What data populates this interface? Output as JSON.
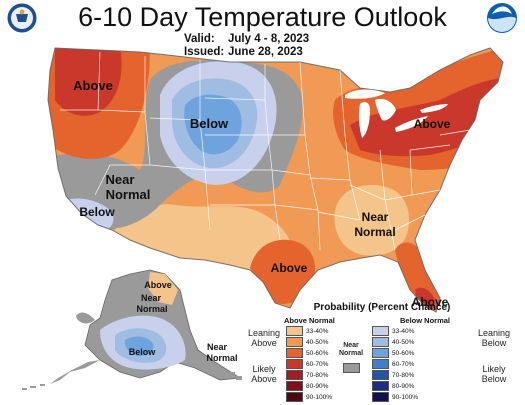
{
  "header": {
    "title": "6-10 Day Temperature Outlook",
    "valid_label": "Valid:",
    "valid_value": "July 4 - 8, 2023",
    "issued_label": "Issued:",
    "issued_value": "June 28, 2023"
  },
  "logos": {
    "left": {
      "name": "doc-seal",
      "text": "DEPARTMENT OF COMMERCE"
    },
    "right": {
      "name": "noaa-logo",
      "text": "NOAA"
    }
  },
  "map": {
    "labels": {
      "northwest": "Above",
      "northern_plains": "Below",
      "great_basin_near": "Near",
      "great_basin_normal": "Normal",
      "california": "Below",
      "northeast": "Above",
      "southeast_near": "Near",
      "southeast_normal": "Normal",
      "texas": "Above",
      "florida": "Above",
      "alaska_north": "Above",
      "alaska_near1": "Near",
      "alaska_normal1": "Normal",
      "alaska_below": "Below",
      "alaska_near2": "Near",
      "alaska_normal2": "Normal"
    },
    "colors": {
      "above_33_40": "#f4c48a",
      "above_40_50": "#f09a55",
      "above_50_60": "#e5642d",
      "above_60_70": "#c9382a",
      "below_33_40": "#c8d0ec",
      "below_40_50": "#9fbde3",
      "below_50_60": "#6fa3dd",
      "near_normal": "#9a9a9a"
    }
  },
  "legend": {
    "title": "Probability (Percent Chance)",
    "above_header": "Above Normal",
    "below_header": "Below Normal",
    "near_label_1": "Near",
    "near_label_2": "Normal",
    "near_color": "#9a9a9a",
    "leaning_above": [
      "Leaning",
      "Above"
    ],
    "likely_above": [
      "Likely",
      "Above"
    ],
    "leaning_below": [
      "Leaning",
      "Below"
    ],
    "likely_below": [
      "Likely",
      "Below"
    ],
    "above": [
      {
        "label": "33-40%",
        "color": "#f4c48a"
      },
      {
        "label": "40-50%",
        "color": "#f09a55"
      },
      {
        "label": "50-60%",
        "color": "#e5642d"
      },
      {
        "label": "60-70%",
        "color": "#c9382a"
      },
      {
        "label": "70-80%",
        "color": "#a61c24"
      },
      {
        "label": "80-90%",
        "color": "#7e1118"
      },
      {
        "label": "90-100%",
        "color": "#4a0a0f"
      }
    ],
    "below": [
      {
        "label": "33-40%",
        "color": "#c8d0ec"
      },
      {
        "label": "40-50%",
        "color": "#9fbde3"
      },
      {
        "label": "50-60%",
        "color": "#6fa3dd"
      },
      {
        "label": "60-70%",
        "color": "#3e7fcc"
      },
      {
        "label": "70-80%",
        "color": "#2154a8"
      },
      {
        "label": "80-90%",
        "color": "#1a2f7e"
      },
      {
        "label": "90-100%",
        "color": "#120f52"
      }
    ]
  }
}
